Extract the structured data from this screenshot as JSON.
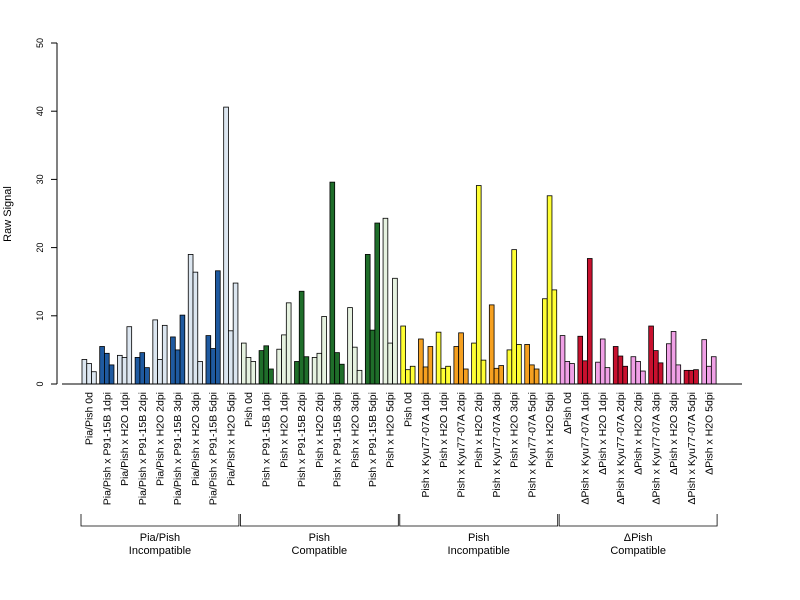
{
  "chart_data": {
    "type": "bar",
    "ylabel": "Raw Signal",
    "ylim": [
      0,
      50
    ],
    "yticks": [
      0,
      10,
      20,
      30,
      40,
      50
    ],
    "categories": [
      "Pia/Pish 0d",
      "Pia/Pish x P91-15B 1dpi",
      "Pia/Pish x H2O 1dpi",
      "Pia/Pish x P91-15B 2dpi",
      "Pia/Pish x H2O 2dpi",
      "Pia/Pish x P91-15B 3dpi",
      "Pia/Pish x H2O 3dpi",
      "Pia/Pish x P91-15B 5dpi",
      "Pia/Pish x H2O 5dpi",
      "Pish 0d",
      "Pish x P91-15B 1dpi",
      "Pish x H2O 1dpi",
      "Pish x P91-15B 2dpi",
      "Pish x H2O 2dpi",
      "Pish x P91-15B 3dpi",
      "Pish x H2O 3dpi",
      "Pish x P91-15B 5dpi",
      "Pish x H2O 5dpi",
      "Pish 0d",
      "Pish x Kyu77-07A 1dpi",
      "Pish x H2O 1dpi",
      "Pish x Kyu77-07A 2dpi",
      "Pish x H2O 2dpi",
      "Pish x Kyu77-07A 3dpi",
      "Pish x H2O 3dpi",
      "Pish x Kyu77-07A 5dpi",
      "Pish x H2O 5dpi",
      "ΔPish 0d",
      "ΔPish x Kyu77-07A 1dpi",
      "ΔPish x H2O 1dpi",
      "ΔPish x Kyu77-07A 2dpi",
      "ΔPish x H2O 2dpi",
      "ΔPish x Kyu77-07A 3dpi",
      "ΔPish x H2O 3dpi",
      "ΔPish x Kyu77-07A 5dpi",
      "ΔPish x H2O 5dpi"
    ],
    "values": [
      [
        3.6,
        3.0,
        1.8
      ],
      [
        5.5,
        4.5,
        2.8
      ],
      [
        4.2,
        3.9,
        8.4
      ],
      [
        3.9,
        4.6,
        2.4
      ],
      [
        9.4,
        3.6,
        8.6
      ],
      [
        6.9,
        5.0,
        10.1
      ],
      [
        19.0,
        16.4,
        3.3
      ],
      [
        7.1,
        5.2,
        16.6
      ],
      [
        40.6,
        7.8,
        14.8
      ],
      [
        6.0,
        3.9,
        3.3
      ],
      [
        4.9,
        5.6,
        2.2
      ],
      [
        5.1,
        7.2,
        11.9
      ],
      [
        3.3,
        13.6,
        4.0
      ],
      [
        3.9,
        4.5,
        9.9
      ],
      [
        29.6,
        4.6,
        2.9
      ],
      [
        11.2,
        5.4,
        2.0
      ],
      [
        19.0,
        7.9,
        23.6
      ],
      [
        24.3,
        6.0,
        15.5
      ],
      [
        8.5,
        2.1,
        2.6
      ],
      [
        6.6,
        2.5,
        5.5
      ],
      [
        7.6,
        2.3,
        2.6
      ],
      [
        5.5,
        7.5,
        2.2
      ],
      [
        6.0,
        29.1,
        3.5
      ],
      [
        11.6,
        2.3,
        2.7
      ],
      [
        5.0,
        19.7,
        5.8
      ],
      [
        5.8,
        2.8,
        2.2
      ],
      [
        12.5,
        27.6,
        13.8
      ],
      [
        7.1,
        3.3,
        3.0
      ],
      [
        7.0,
        3.4,
        18.4
      ],
      [
        3.2,
        6.6,
        2.4
      ],
      [
        5.5,
        4.1,
        2.6
      ],
      [
        4.0,
        3.3,
        1.9
      ],
      [
        8.5,
        4.9,
        3.1
      ],
      [
        5.9,
        7.7,
        2.8
      ],
      [
        2.0,
        2.0,
        2.1
      ],
      [
        6.5,
        2.6,
        4.0
      ]
    ],
    "bar_colors": [
      "#dce6f0",
      "#1f5aa0",
      "#dce6f0",
      "#1f5aa0",
      "#dce6f0",
      "#1f5aa0",
      "#dce6f0",
      "#1f5aa0",
      "#dce6f0",
      "#e6f2e0",
      "#1f6e2a",
      "#e6f2e0",
      "#1f6e2a",
      "#e6f2e0",
      "#1f6e2a",
      "#e6f2e0",
      "#1f6e2a",
      "#e6f2e0",
      "#ffff33",
      "#f5a020",
      "#ffff33",
      "#f5a020",
      "#ffff33",
      "#f5a020",
      "#ffff33",
      "#f5a020",
      "#ffff33",
      "#f0a0e6",
      "#c8102e",
      "#f0a0e6",
      "#c8102e",
      "#f0a0e6",
      "#c8102e",
      "#f0a0e6",
      "#c8102e",
      "#f0a0e6"
    ],
    "groups": [
      {
        "line1": "Pia/Pish",
        "line2": "Incompatible",
        "start": 0,
        "end": 8
      },
      {
        "line1": "Pish",
        "line2": "Compatible",
        "start": 9,
        "end": 17
      },
      {
        "line1": "Pish",
        "line2": "Incompatible",
        "start": 18,
        "end": 26
      },
      {
        "line1": "ΔPish",
        "line2": "Compatible",
        "start": 27,
        "end": 35
      }
    ],
    "grid": false,
    "legend": "none"
  }
}
